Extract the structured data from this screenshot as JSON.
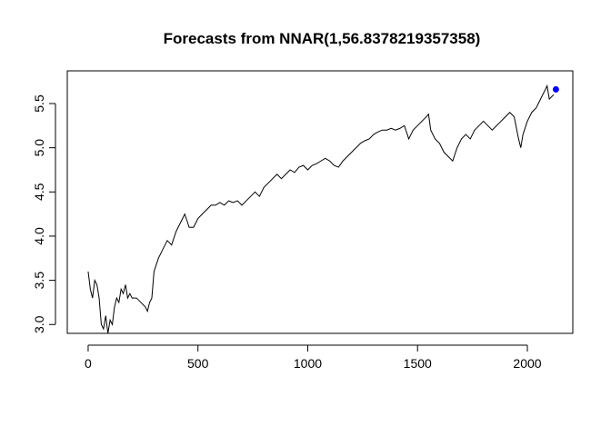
{
  "chart_data": {
    "type": "line",
    "title": "Forecasts from NNAR(1,56.8378219357358)",
    "x": [
      0,
      10,
      20,
      30,
      40,
      50,
      60,
      70,
      80,
      90,
      100,
      110,
      120,
      130,
      140,
      150,
      160,
      170,
      180,
      190,
      200,
      220,
      240,
      260,
      270,
      280,
      290,
      300,
      320,
      340,
      360,
      380,
      400,
      420,
      440,
      460,
      480,
      500,
      520,
      540,
      560,
      580,
      600,
      620,
      640,
      660,
      680,
      700,
      720,
      740,
      760,
      780,
      800,
      820,
      840,
      860,
      880,
      900,
      920,
      940,
      960,
      980,
      1000,
      1020,
      1040,
      1060,
      1080,
      1100,
      1120,
      1140,
      1160,
      1180,
      1200,
      1220,
      1240,
      1260,
      1280,
      1300,
      1320,
      1340,
      1360,
      1380,
      1400,
      1420,
      1440,
      1460,
      1480,
      1500,
      1520,
      1540,
      1550,
      1560,
      1580,
      1600,
      1620,
      1640,
      1660,
      1680,
      1700,
      1720,
      1740,
      1760,
      1780,
      1800,
      1820,
      1840,
      1860,
      1880,
      1900,
      1920,
      1940,
      1960,
      1970,
      1980,
      2000,
      2020,
      2040,
      2060,
      2080,
      2090,
      2100,
      2120
    ],
    "values": [
      3.6,
      3.4,
      3.3,
      3.5,
      3.45,
      3.3,
      3.0,
      2.95,
      3.1,
      2.9,
      3.05,
      3.0,
      3.2,
      3.3,
      3.25,
      3.4,
      3.35,
      3.45,
      3.3,
      3.35,
      3.3,
      3.3,
      3.25,
      3.2,
      3.15,
      3.25,
      3.3,
      3.6,
      3.75,
      3.85,
      3.95,
      3.9,
      4.05,
      4.15,
      4.25,
      4.1,
      4.1,
      4.2,
      4.25,
      4.3,
      4.35,
      4.35,
      4.38,
      4.35,
      4.4,
      4.38,
      4.4,
      4.35,
      4.4,
      4.45,
      4.5,
      4.45,
      4.55,
      4.6,
      4.65,
      4.7,
      4.65,
      4.7,
      4.75,
      4.72,
      4.78,
      4.8,
      4.75,
      4.8,
      4.82,
      4.85,
      4.88,
      4.85,
      4.8,
      4.78,
      4.85,
      4.9,
      4.95,
      5.0,
      5.05,
      5.08,
      5.1,
      5.15,
      5.18,
      5.2,
      5.2,
      5.22,
      5.2,
      5.22,
      5.25,
      5.1,
      5.2,
      5.25,
      5.3,
      5.35,
      5.38,
      5.2,
      5.1,
      5.05,
      4.95,
      4.9,
      4.85,
      5.0,
      5.1,
      5.15,
      5.1,
      5.2,
      5.25,
      5.3,
      5.25,
      5.2,
      5.25,
      5.3,
      5.35,
      5.4,
      5.35,
      5.1,
      5.0,
      5.15,
      5.3,
      5.4,
      5.45,
      5.55,
      5.65,
      5.7,
      5.55,
      5.6
    ],
    "color": "#000000",
    "forecast": {
      "x": [
        2130
      ],
      "values": [
        5.66
      ],
      "color": "#0000ff"
    },
    "xlim": [
      -95,
      2207
    ],
    "ylim": [
      2.9,
      5.87
    ],
    "xticks": [
      0,
      500,
      1000,
      1500,
      2000
    ],
    "yticks": [
      {
        "value": 3,
        "label": "3.0"
      },
      {
        "value": 3.5,
        "label": "3.5"
      },
      {
        "value": 4,
        "label": "4.0"
      },
      {
        "value": 4.5,
        "label": "4.5"
      },
      {
        "value": 5,
        "label": "5.0"
      },
      {
        "value": 5.5,
        "label": "5.5"
      }
    ]
  }
}
